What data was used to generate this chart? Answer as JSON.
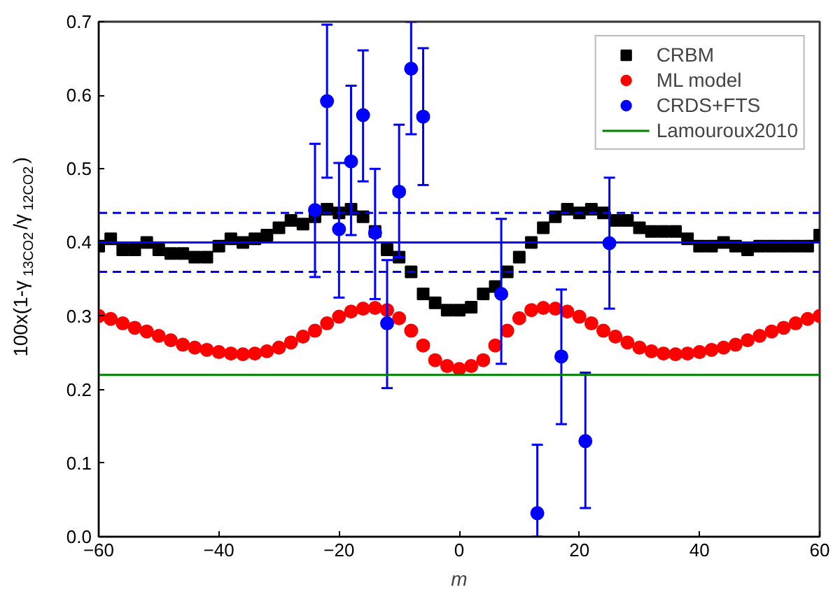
{
  "chart_data": {
    "type": "scatter",
    "xlabel": "m",
    "ylabel": "100x(1-γ$_{13CO2}$/γ$_{12CO2}$)",
    "xlim": [
      -60,
      60
    ],
    "ylim": [
      0,
      0.7
    ],
    "xticks": [
      -60,
      -40,
      -20,
      0,
      20,
      40,
      60
    ],
    "yticks": [
      {
        "value": 0,
        "label": "0.0"
      },
      0.1,
      0.2,
      0.3,
      0.4,
      0.5,
      0.6,
      0.7
    ],
    "grid": false,
    "legend": "top right",
    "series": [
      {
        "name": "CRBM",
        "marker": "square",
        "color": "#000000",
        "x": [
          -60,
          -58,
          -56,
          -54,
          -52,
          -50,
          -48,
          -46,
          -44,
          -42,
          -40,
          -38,
          -36,
          -34,
          -32,
          -30,
          -28,
          -26,
          -24,
          -22,
          -20,
          -18,
          -16,
          -14,
          -12,
          -10,
          -8,
          -6,
          -4,
          -2,
          0,
          2,
          4,
          6,
          8,
          10,
          12,
          14,
          16,
          18,
          20,
          22,
          24,
          26,
          28,
          30,
          32,
          34,
          36,
          38,
          40,
          42,
          44,
          46,
          48,
          50,
          52,
          54,
          56,
          58,
          60
        ],
        "values": [
          0.395,
          0.405,
          0.39,
          0.39,
          0.4,
          0.39,
          0.385,
          0.385,
          0.38,
          0.38,
          0.395,
          0.405,
          0.4,
          0.405,
          0.41,
          0.42,
          0.43,
          0.425,
          0.435,
          0.445,
          0.44,
          0.445,
          0.435,
          0.415,
          0.39,
          0.38,
          0.36,
          0.33,
          0.318,
          0.308,
          0.308,
          0.312,
          0.33,
          0.34,
          0.36,
          0.38,
          0.4,
          0.42,
          0.435,
          0.445,
          0.44,
          0.445,
          0.44,
          0.43,
          0.43,
          0.42,
          0.415,
          0.415,
          0.415,
          0.405,
          0.395,
          0.395,
          0.4,
          0.395,
          0.39,
          0.395,
          0.395,
          0.395,
          0.395,
          0.395,
          0.41
        ]
      },
      {
        "name": "ML model",
        "marker": "circle",
        "color": "#ff0000",
        "x": [
          -60,
          -58,
          -56,
          -54,
          -52,
          -50,
          -48,
          -46,
          -44,
          -42,
          -40,
          -38,
          -36,
          -34,
          -32,
          -30,
          -28,
          -26,
          -24,
          -22,
          -20,
          -18,
          -16,
          -14,
          -12,
          -10,
          -8,
          -6,
          -4,
          -2,
          0,
          2,
          4,
          6,
          8,
          10,
          12,
          14,
          16,
          18,
          20,
          22,
          24,
          26,
          28,
          30,
          32,
          34,
          36,
          38,
          40,
          42,
          44,
          46,
          48,
          50,
          52,
          54,
          56,
          58,
          60
        ],
        "values": [
          0.3,
          0.296,
          0.29,
          0.284,
          0.279,
          0.273,
          0.267,
          0.261,
          0.257,
          0.254,
          0.251,
          0.249,
          0.248,
          0.249,
          0.252,
          0.257,
          0.264,
          0.272,
          0.28,
          0.29,
          0.299,
          0.306,
          0.31,
          0.311,
          0.308,
          0.297,
          0.28,
          0.26,
          0.24,
          0.232,
          0.228,
          0.232,
          0.24,
          0.26,
          0.28,
          0.297,
          0.308,
          0.311,
          0.31,
          0.306,
          0.299,
          0.29,
          0.28,
          0.272,
          0.264,
          0.257,
          0.252,
          0.249,
          0.248,
          0.249,
          0.251,
          0.254,
          0.257,
          0.261,
          0.267,
          0.273,
          0.279,
          0.284,
          0.29,
          0.296,
          0.3
        ]
      },
      {
        "name": "CRDS+FTS",
        "marker": "circle",
        "color": "#0000ff",
        "x": [
          -24,
          -22,
          -20,
          -18,
          -16,
          -14,
          -12,
          -10,
          -8,
          -6,
          7,
          13,
          17,
          21,
          25
        ],
        "values": [
          0.444,
          0.592,
          0.418,
          0.51,
          0.573,
          0.413,
          0.29,
          0.469,
          0.636,
          0.571,
          0.33,
          0.032,
          0.245,
          0.13,
          0.399
        ],
        "errors": [
          [
            0.353,
            0.534
          ],
          [
            0.488,
            0.696
          ],
          [
            0.325,
            0.508
          ],
          [
            0.41,
            0.613
          ],
          [
            0.483,
            0.661
          ],
          [
            0.323,
            0.5
          ],
          [
            0.202,
            0.376
          ],
          [
            0.38,
            0.56
          ],
          [
            0.547,
            0.7
          ],
          [
            0.478,
            0.664
          ],
          [
            0.235,
            0.432
          ],
          [
            0,
            0.125
          ],
          [
            0.153,
            0.336
          ],
          [
            0.039,
            0.223
          ],
          [
            0.31,
            0.488
          ]
        ]
      },
      {
        "name": "Lamouroux2010",
        "type": "line",
        "marker": "none",
        "color": "#008000",
        "x": [
          -60,
          60
        ],
        "values": [
          0.22,
          0.22
        ]
      }
    ],
    "ref_lines": [
      {
        "axis": "y",
        "value": 0.4,
        "color": "#0000ff",
        "line_style": "solid"
      },
      {
        "axis": "y",
        "value": 0.44,
        "color": "#0000ff",
        "line_style": "dashed"
      },
      {
        "axis": "y",
        "value": 0.36,
        "color": "#0000ff",
        "line_style": "dashed"
      }
    ]
  }
}
